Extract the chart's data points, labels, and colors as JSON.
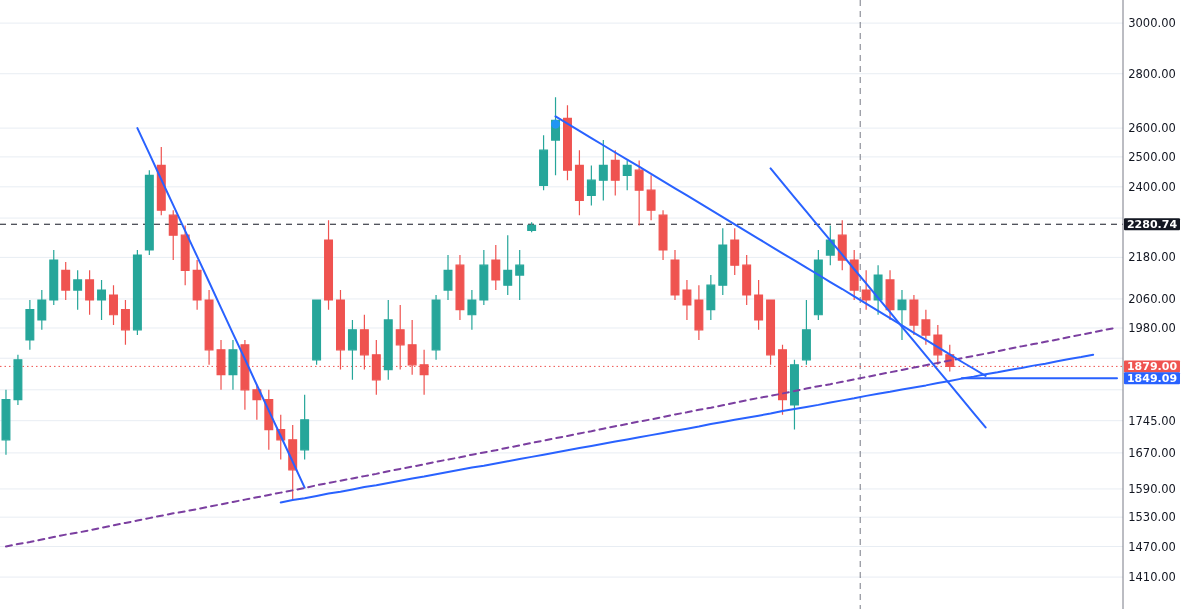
{
  "chart_data": {
    "type": "candlestick",
    "log": "y",
    "grid": "y",
    "tick_labels": "y",
    "categories": [
      null,
      null,
      null,
      null,
      null,
      null,
      null,
      null,
      null,
      null,
      null,
      null,
      null,
      null,
      null,
      null,
      null,
      null,
      null,
      null,
      null,
      null,
      null,
      null,
      null,
      null,
      null,
      null,
      null,
      null,
      null,
      null,
      null,
      null,
      null,
      null,
      null,
      null,
      null,
      null,
      null,
      null,
      null,
      null,
      null,
      null,
      null,
      null,
      null,
      null,
      null,
      null,
      null,
      null,
      null,
      null,
      null,
      null,
      null,
      null,
      null,
      null,
      null,
      null,
      null,
      null,
      null,
      null,
      null,
      null,
      null,
      null,
      null,
      null,
      null,
      null,
      null,
      null,
      null,
      null,
      null,
      null,
      null,
      null,
      null,
      null,
      null,
      null,
      null,
      null,
      null,
      null,
      null,
      null
    ],
    "ylim": [
      1350,
      3096
    ],
    "yticks": [
      {
        "value": 1410,
        "label": "1410.00"
      },
      {
        "value": 1470,
        "label": "1470.00"
      },
      {
        "value": 1530,
        "label": "1530.00"
      },
      {
        "value": 1590,
        "label": "1590.00"
      },
      {
        "value": 1670,
        "label": "1670.00"
      },
      {
        "value": 1745,
        "label": "1745.00"
      },
      {
        "value": 1820,
        "label": null
      },
      {
        "value": 1900,
        "label": null
      },
      {
        "value": 1980,
        "label": "1980.00"
      },
      {
        "value": 2060,
        "label": "2060.00"
      },
      {
        "value": 2180,
        "label": "2180.00"
      },
      {
        "value": 2300,
        "label": null
      },
      {
        "value": 2400,
        "label": "2400.00"
      },
      {
        "value": 2500,
        "label": "2500.00"
      },
      {
        "value": 2600,
        "label": "2600.00"
      },
      {
        "value": 2800,
        "label": "2800.00"
      },
      {
        "value": 3000,
        "label": "3000.00"
      }
    ],
    "ohlc": [
      [
        1700,
        1820,
        1666,
        1796
      ],
      [
        1796,
        1909,
        1783,
        1896
      ],
      [
        1948,
        2057,
        1922,
        2030
      ],
      [
        2002,
        2085,
        1975,
        2057
      ],
      [
        2057,
        2202,
        2043,
        2172
      ],
      [
        2142,
        2166,
        2057,
        2085
      ],
      [
        2085,
        2142,
        2030,
        2114
      ],
      [
        2114,
        2142,
        2016,
        2057
      ],
      [
        2057,
        2114,
        2002,
        2085
      ],
      [
        2071,
        2099,
        1988,
        2016
      ],
      [
        2030,
        2057,
        1935,
        1975
      ],
      [
        1975,
        2202,
        1961,
        2187
      ],
      [
        2202,
        2455,
        2187,
        2438
      ],
      [
        2471,
        2534,
        2309,
        2325
      ],
      [
        2309,
        2325,
        2172,
        2247
      ],
      [
        2247,
        2277,
        2099,
        2142
      ],
      [
        2142,
        2172,
        2030,
        2057
      ],
      [
        2057,
        2085,
        1883,
        1922
      ],
      [
        1922,
        1948,
        1820,
        1858
      ],
      [
        1858,
        1948,
        1820,
        1922
      ],
      [
        1935,
        1948,
        1771,
        1820
      ],
      [
        1820,
        1833,
        1747,
        1796
      ],
      [
        1796,
        1820,
        1677,
        1724
      ],
      [
        1724,
        1759,
        1655,
        1700
      ],
      [
        1700,
        1735,
        1567,
        1632
      ],
      [
        1677,
        1808,
        1655,
        1747
      ],
      [
        1896,
        2057,
        1883,
        2057
      ],
      [
        2232,
        2293,
        2030,
        2057
      ],
      [
        2057,
        2085,
        1871,
        1922
      ],
      [
        1922,
        2002,
        1845,
        1975
      ],
      [
        1975,
        2016,
        1871,
        1909
      ],
      [
        1909,
        1948,
        1808,
        1845
      ],
      [
        1871,
        2057,
        1845,
        2002
      ],
      [
        1975,
        2043,
        1871,
        1935
      ],
      [
        1935,
        2002,
        1858,
        1883
      ],
      [
        1883,
        1922,
        1808,
        1858
      ],
      [
        1922,
        2071,
        1896,
        2057
      ],
      [
        2085,
        2187,
        2057,
        2142
      ],
      [
        2157,
        2187,
        2002,
        2030
      ],
      [
        2016,
        2085,
        1975,
        2057
      ],
      [
        2057,
        2202,
        2043,
        2157
      ],
      [
        2172,
        2217,
        2085,
        2114
      ],
      [
        2099,
        2247,
        2071,
        2142
      ],
      [
        2128,
        2202,
        2057,
        2157
      ],
      [
        2262,
        2287,
        2256,
        2277
      ],
      [
        2405,
        2575,
        2389,
        2523
      ],
      [
        2558,
        2712,
        2438,
        2628
      ],
      [
        2635,
        2682,
        2422,
        2455
      ],
      [
        2471,
        2523,
        2309,
        2356
      ],
      [
        2372,
        2471,
        2340,
        2422
      ],
      [
        2422,
        2558,
        2356,
        2471
      ],
      [
        2488,
        2523,
        2372,
        2422
      ],
      [
        2438,
        2488,
        2389,
        2471
      ],
      [
        2455,
        2488,
        2277,
        2389
      ],
      [
        2389,
        2438,
        2293,
        2325
      ],
      [
        2309,
        2325,
        2172,
        2202
      ],
      [
        2172,
        2202,
        2057,
        2071
      ],
      [
        2085,
        2114,
        2002,
        2043
      ],
      [
        2057,
        2099,
        1948,
        1975
      ],
      [
        2030,
        2128,
        2002,
        2099
      ],
      [
        2099,
        2268,
        2071,
        2217
      ],
      [
        2232,
        2268,
        2128,
        2157
      ],
      [
        2157,
        2187,
        2043,
        2071
      ],
      [
        2071,
        2114,
        1975,
        2002
      ],
      [
        2057,
        2057,
        1883,
        1909
      ],
      [
        1922,
        1935,
        1759,
        1796
      ],
      [
        1783,
        1896,
        1724,
        1883
      ],
      [
        1896,
        2057,
        1883,
        1975
      ],
      [
        2016,
        2202,
        2002,
        2172
      ],
      [
        2187,
        2277,
        2157,
        2232
      ],
      [
        2247,
        2293,
        2142,
        2172
      ],
      [
        2172,
        2202,
        2057,
        2085
      ],
      [
        2085,
        2142,
        2030,
        2057
      ],
      [
        2057,
        2157,
        2016,
        2128
      ],
      [
        2114,
        2142,
        2002,
        2030
      ],
      [
        2030,
        2085,
        1948,
        2057
      ],
      [
        2057,
        2071,
        1961,
        1988
      ],
      [
        2002,
        2030,
        1935,
        1961
      ],
      [
        1961,
        1988,
        1883,
        1909
      ],
      [
        1909,
        1935,
        1866,
        1879
      ],
      null,
      null,
      null,
      null,
      null,
      null,
      null,
      null,
      null,
      null,
      null,
      null,
      null,
      null
    ],
    "series": [
      {
        "type": "line",
        "color": "#2962ff",
        "values": [
          null,
          null,
          null,
          null,
          null,
          null,
          null,
          null,
          null,
          null,
          null,
          2600,
          2511,
          2424,
          2341,
          2260,
          2183,
          2108,
          2035,
          1965,
          1898,
          1832,
          1769,
          1709,
          1650,
          1593,
          null,
          null,
          null,
          null,
          null,
          null,
          null,
          null,
          null,
          null,
          null,
          null,
          null,
          null,
          null,
          null,
          null,
          null,
          null,
          null,
          null,
          null,
          null,
          null,
          null,
          null,
          null,
          null,
          null,
          null,
          null,
          null,
          null,
          null,
          null,
          null,
          null,
          null,
          null,
          null,
          null,
          null,
          null,
          null,
          null,
          null,
          null,
          null,
          null,
          null,
          null,
          null,
          null,
          null,
          null,
          null,
          null,
          null,
          null,
          null,
          null,
          null,
          null,
          null,
          null,
          null,
          null,
          null
        ]
      },
      {
        "type": "line",
        "color": "#2962ff",
        "values": [
          null,
          null,
          null,
          null,
          null,
          null,
          null,
          null,
          null,
          null,
          null,
          null,
          null,
          null,
          null,
          null,
          null,
          null,
          null,
          null,
          null,
          null,
          null,
          1561,
          1566,
          1570,
          1575,
          1580,
          1584,
          1589,
          1594,
          1598,
          1603,
          1608,
          1613,
          1617,
          1622,
          1627,
          1632,
          1637,
          1641,
          1646,
          1651,
          1656,
          1661,
          1666,
          1671,
          1676,
          1681,
          1686,
          1691,
          1696,
          1701,
          1706,
          1711,
          1716,
          1721,
          1726,
          1731,
          1737,
          1742,
          1747,
          1752,
          1757,
          1762,
          1768,
          1773,
          1778,
          1783,
          1789,
          1794,
          1799,
          1805,
          1810,
          1815,
          1821,
          1826,
          1831,
          1837,
          1842,
          1848,
          1853,
          1859,
          1864,
          1870,
          1875,
          1881,
          1886,
          1892,
          1898,
          1903,
          1909,
          null,
          null
        ]
      },
      {
        "type": "line",
        "color": "#7b3fa0",
        "line_style": "dashed",
        "values": [
          1470,
          1475,
          1479,
          1484,
          1489,
          1494,
          1498,
          1503,
          1508,
          1513,
          1518,
          1523,
          1528,
          1533,
          1538,
          1542,
          1547,
          1552,
          1557,
          1562,
          1567,
          1572,
          1577,
          1582,
          1587,
          1592,
          1598,
          1603,
          1608,
          1613,
          1618,
          1623,
          1629,
          1634,
          1639,
          1644,
          1650,
          1655,
          1660,
          1666,
          1671,
          1676,
          1682,
          1687,
          1693,
          1698,
          1704,
          1709,
          1715,
          1720,
          1726,
          1732,
          1737,
          1743,
          1748,
          1754,
          1760,
          1765,
          1771,
          1776,
          1782,
          1788,
          1794,
          1800,
          1805,
          1811,
          1817,
          1823,
          1829,
          1834,
          1840,
          1846,
          1852,
          1858,
          1864,
          1870,
          1876,
          1882,
          1888,
          1894,
          1900,
          1906,
          1912,
          1918,
          1925,
          1931,
          1937,
          1943,
          1949,
          1956,
          1962,
          1968,
          1975,
          1981
        ]
      },
      {
        "type": "line",
        "color": "#2962ff",
        "values": [
          null,
          null,
          null,
          null,
          null,
          null,
          null,
          null,
          null,
          null,
          null,
          null,
          null,
          null,
          null,
          null,
          null,
          null,
          null,
          null,
          null,
          null,
          null,
          null,
          null,
          null,
          null,
          null,
          null,
          null,
          null,
          null,
          null,
          null,
          null,
          null,
          null,
          null,
          null,
          null,
          null,
          null,
          null,
          null,
          null,
          null,
          2642,
          2616,
          2590,
          2565,
          2540,
          2515,
          2491,
          2467,
          2443,
          2419,
          2395,
          2372,
          2349,
          2326,
          2303,
          2280,
          2258,
          2236,
          2214,
          2192,
          2171,
          2150,
          2129,
          2108,
          2088,
          2067,
          2047,
          2027,
          2007,
          1987,
          1967,
          1948,
          1929,
          1910,
          1891,
          1873,
          1855,
          null,
          null,
          null,
          null,
          null,
          null,
          null,
          null,
          null,
          null,
          null
        ]
      },
      {
        "type": "line",
        "color": "#2962ff",
        "values": [
          null,
          null,
          null,
          null,
          null,
          null,
          null,
          null,
          null,
          null,
          null,
          null,
          null,
          null,
          null,
          null,
          null,
          null,
          null,
          null,
          null,
          null,
          null,
          null,
          null,
          null,
          null,
          null,
          null,
          null,
          null,
          null,
          null,
          null,
          null,
          null,
          null,
          null,
          null,
          null,
          null,
          null,
          null,
          null,
          null,
          null,
          null,
          null,
          null,
          null,
          null,
          null,
          null,
          null,
          null,
          null,
          null,
          null,
          null,
          null,
          null,
          null,
          null,
          null,
          2461,
          2413,
          2366,
          2320,
          2275,
          2231,
          2188,
          2145,
          2104,
          2063,
          2023,
          1983,
          1945,
          1907,
          1870,
          1834,
          1798,
          1763,
          1729,
          null,
          null,
          null,
          null,
          null,
          null,
          null,
          null,
          null,
          null,
          null
        ]
      },
      {
        "type": "line",
        "color": "#2962ff",
        "name": "1849.09",
        "values": [
          null,
          null,
          null,
          null,
          null,
          null,
          null,
          null,
          null,
          null,
          null,
          null,
          null,
          null,
          null,
          null,
          null,
          null,
          null,
          null,
          null,
          null,
          null,
          null,
          null,
          null,
          null,
          null,
          null,
          null,
          null,
          null,
          null,
          null,
          null,
          null,
          null,
          null,
          null,
          null,
          null,
          null,
          null,
          null,
          null,
          null,
          null,
          null,
          null,
          null,
          null,
          null,
          null,
          null,
          null,
          null,
          null,
          null,
          null,
          null,
          null,
          null,
          null,
          null,
          null,
          null,
          null,
          null,
          null,
          null,
          null,
          null,
          null,
          null,
          null,
          null,
          null,
          null,
          null,
          null,
          1849.09,
          1849.09,
          1849.09,
          1849.09,
          1849.09,
          1849.09,
          1849.09,
          1849.09,
          1849.09,
          1849.09,
          1849.09,
          1849.09,
          1849.09,
          1849.09
        ]
      },
      {
        "type": "scatter",
        "color": "#2196f3",
        "marker": "circle",
        "values": [
          null,
          null,
          null,
          null,
          null,
          null,
          null,
          null,
          null,
          null,
          null,
          null,
          null,
          null,
          null,
          null,
          null,
          null,
          null,
          null,
          null,
          null,
          null,
          null,
          null,
          null,
          null,
          null,
          null,
          null,
          null,
          null,
          null,
          null,
          null,
          null,
          null,
          null,
          null,
          null,
          null,
          null,
          null,
          null,
          null,
          null,
          2614,
          null,
          null,
          null,
          null,
          null,
          null,
          null,
          null,
          null,
          null,
          null,
          null,
          null,
          null,
          null,
          null,
          null,
          null,
          null,
          null,
          null,
          null,
          null,
          null,
          null,
          null,
          null,
          null,
          null,
          null,
          null,
          null,
          null,
          null,
          null,
          null,
          null,
          null,
          null,
          null,
          null,
          null,
          null,
          null,
          null,
          null,
          null
        ]
      }
    ],
    "ref_lines": [
      {
        "axis": "y",
        "value": 2280.74,
        "label": "2280.74",
        "color": "#131722",
        "line_style": "dashed"
      },
      {
        "axis": "y",
        "value": 1879,
        "label": "1879.00",
        "color": "#ef5350",
        "line_style": "dotted"
      }
    ]
  }
}
